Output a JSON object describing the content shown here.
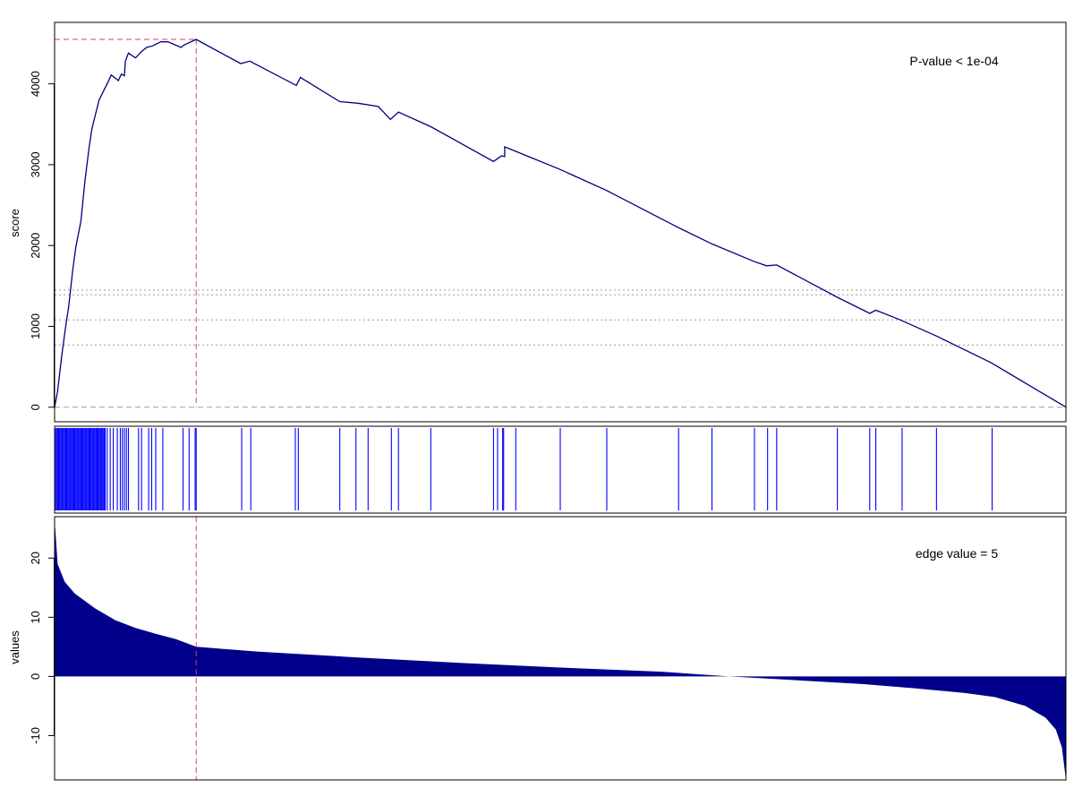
{
  "chart_data": [
    {
      "type": "line",
      "ylabel": "score",
      "ylim": [
        -180,
        4760
      ],
      "yticks": [
        0,
        1000,
        2000,
        3000,
        4000
      ],
      "annotation": "P-value < 1e-04",
      "max_score": 4550,
      "max_rank": 0.14,
      "threshold_lines": [
        1450,
        1390,
        1080,
        770
      ],
      "line_color": "#000080",
      "marker_color": "#d3416a",
      "curve": [
        [
          0.0,
          0
        ],
        [
          0.003,
          200
        ],
        [
          0.007,
          630
        ],
        [
          0.011,
          1000
        ],
        [
          0.014,
          1250
        ],
        [
          0.018,
          1700
        ],
        [
          0.021,
          1980
        ],
        [
          0.026,
          2300
        ],
        [
          0.03,
          2800
        ],
        [
          0.034,
          3200
        ],
        [
          0.037,
          3450
        ],
        [
          0.04,
          3600
        ],
        [
          0.044,
          3800
        ],
        [
          0.048,
          3900
        ],
        [
          0.052,
          4000
        ],
        [
          0.056,
          4110
        ],
        [
          0.06,
          4070
        ],
        [
          0.063,
          4040
        ],
        [
          0.066,
          4120
        ],
        [
          0.069,
          4100
        ],
        [
          0.07,
          4280
        ],
        [
          0.073,
          4380
        ],
        [
          0.08,
          4320
        ],
        [
          0.086,
          4400
        ],
        [
          0.091,
          4450
        ],
        [
          0.097,
          4470
        ],
        [
          0.105,
          4520
        ],
        [
          0.112,
          4520
        ],
        [
          0.125,
          4450
        ],
        [
          0.128,
          4480
        ],
        [
          0.14,
          4550
        ],
        [
          0.184,
          4250
        ],
        [
          0.193,
          4280
        ],
        [
          0.239,
          3980
        ],
        [
          0.243,
          4080
        ],
        [
          0.282,
          3780
        ],
        [
          0.3,
          3760
        ],
        [
          0.32,
          3720
        ],
        [
          0.332,
          3560
        ],
        [
          0.34,
          3650
        ],
        [
          0.372,
          3470
        ],
        [
          0.434,
          3040
        ],
        [
          0.442,
          3110
        ],
        [
          0.445,
          3100
        ],
        [
          0.445,
          3220
        ],
        [
          0.453,
          3180
        ],
        [
          0.5,
          2940
        ],
        [
          0.546,
          2680
        ],
        [
          0.617,
          2220
        ],
        [
          0.65,
          2020
        ],
        [
          0.692,
          1800
        ],
        [
          0.704,
          1750
        ],
        [
          0.714,
          1760
        ],
        [
          0.774,
          1360
        ],
        [
          0.806,
          1160
        ],
        [
          0.812,
          1200
        ],
        [
          0.836,
          1080
        ],
        [
          0.872,
          880
        ],
        [
          0.926,
          550
        ],
        [
          1.0,
          0
        ]
      ]
    },
    {
      "type": "barcode",
      "hit_positions": [
        0.001,
        0.002,
        0.003,
        0.004,
        0.005,
        0.006,
        0.007,
        0.008,
        0.009,
        0.01,
        0.011,
        0.012,
        0.013,
        0.014,
        0.015,
        0.016,
        0.017,
        0.018,
        0.019,
        0.02,
        0.021,
        0.022,
        0.023,
        0.024,
        0.025,
        0.026,
        0.027,
        0.028,
        0.029,
        0.03,
        0.031,
        0.032,
        0.033,
        0.034,
        0.035,
        0.036,
        0.037,
        0.038,
        0.039,
        0.04,
        0.041,
        0.042,
        0.043,
        0.044,
        0.045,
        0.046,
        0.047,
        0.048,
        0.049,
        0.05,
        0.052,
        0.055,
        0.058,
        0.062,
        0.065,
        0.067,
        0.069,
        0.071,
        0.073,
        0.083,
        0.086,
        0.093,
        0.096,
        0.1,
        0.107,
        0.127,
        0.133,
        0.139,
        0.14,
        0.185,
        0.194,
        0.238,
        0.241,
        0.282,
        0.298,
        0.31,
        0.333,
        0.34,
        0.372,
        0.434,
        0.438,
        0.443,
        0.444,
        0.456,
        0.5,
        0.546,
        0.617,
        0.65,
        0.692,
        0.705,
        0.714,
        0.774,
        0.806,
        0.812,
        0.838,
        0.872,
        0.927
      ],
      "line_color": "#0000ff"
    },
    {
      "type": "area",
      "ylabel": "values",
      "ylim": [
        -17.5,
        27
      ],
      "yticks": [
        -10,
        0,
        10,
        20
      ],
      "annotation": "edge value =  5",
      "edge_rank": 0.14,
      "fill_color": "#00008b",
      "curve": [
        [
          0.0,
          26.5
        ],
        [
          0.003,
          19.0
        ],
        [
          0.01,
          16.0
        ],
        [
          0.02,
          14.0
        ],
        [
          0.04,
          11.5
        ],
        [
          0.06,
          9.5
        ],
        [
          0.08,
          8.2
        ],
        [
          0.1,
          7.2
        ],
        [
          0.12,
          6.3
        ],
        [
          0.14,
          5.0
        ],
        [
          0.2,
          4.2
        ],
        [
          0.3,
          3.2
        ],
        [
          0.4,
          2.3
        ],
        [
          0.5,
          1.5
        ],
        [
          0.6,
          0.8
        ],
        [
          0.667,
          0.0
        ],
        [
          0.75,
          -0.8
        ],
        [
          0.8,
          -1.3
        ],
        [
          0.85,
          -2.0
        ],
        [
          0.9,
          -2.8
        ],
        [
          0.93,
          -3.5
        ],
        [
          0.96,
          -5.0
        ],
        [
          0.98,
          -7.0
        ],
        [
          0.99,
          -9.0
        ],
        [
          0.996,
          -12.0
        ],
        [
          1.0,
          -17.5
        ]
      ]
    }
  ]
}
